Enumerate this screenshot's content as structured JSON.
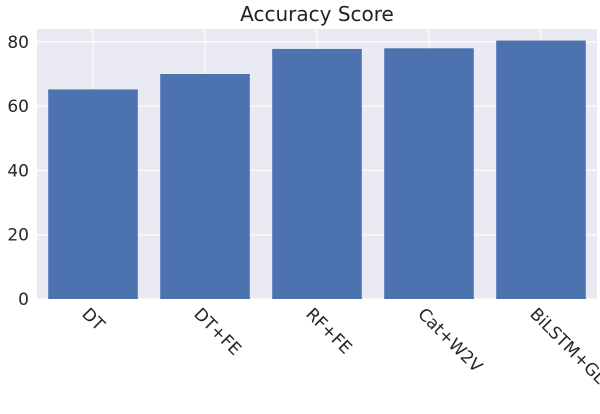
{
  "chart_data": {
    "type": "bar",
    "title": "Accuracy Score",
    "xlabel": "",
    "ylabel": "",
    "categories": [
      "DT",
      "DT+FE",
      "RF+FE",
      "Cat+W2V",
      "BiLSTM+GLOVE"
    ],
    "values": [
      65.2,
      70.0,
      77.8,
      78.0,
      80.4
    ],
    "ylim": [
      0,
      84
    ],
    "yticks": [
      0,
      20,
      40,
      60,
      80
    ],
    "grid": true,
    "legend": "none",
    "colors": {
      "bar": "#4c72b0",
      "background": "#eaeaf2",
      "grid": "#ffffff"
    }
  }
}
